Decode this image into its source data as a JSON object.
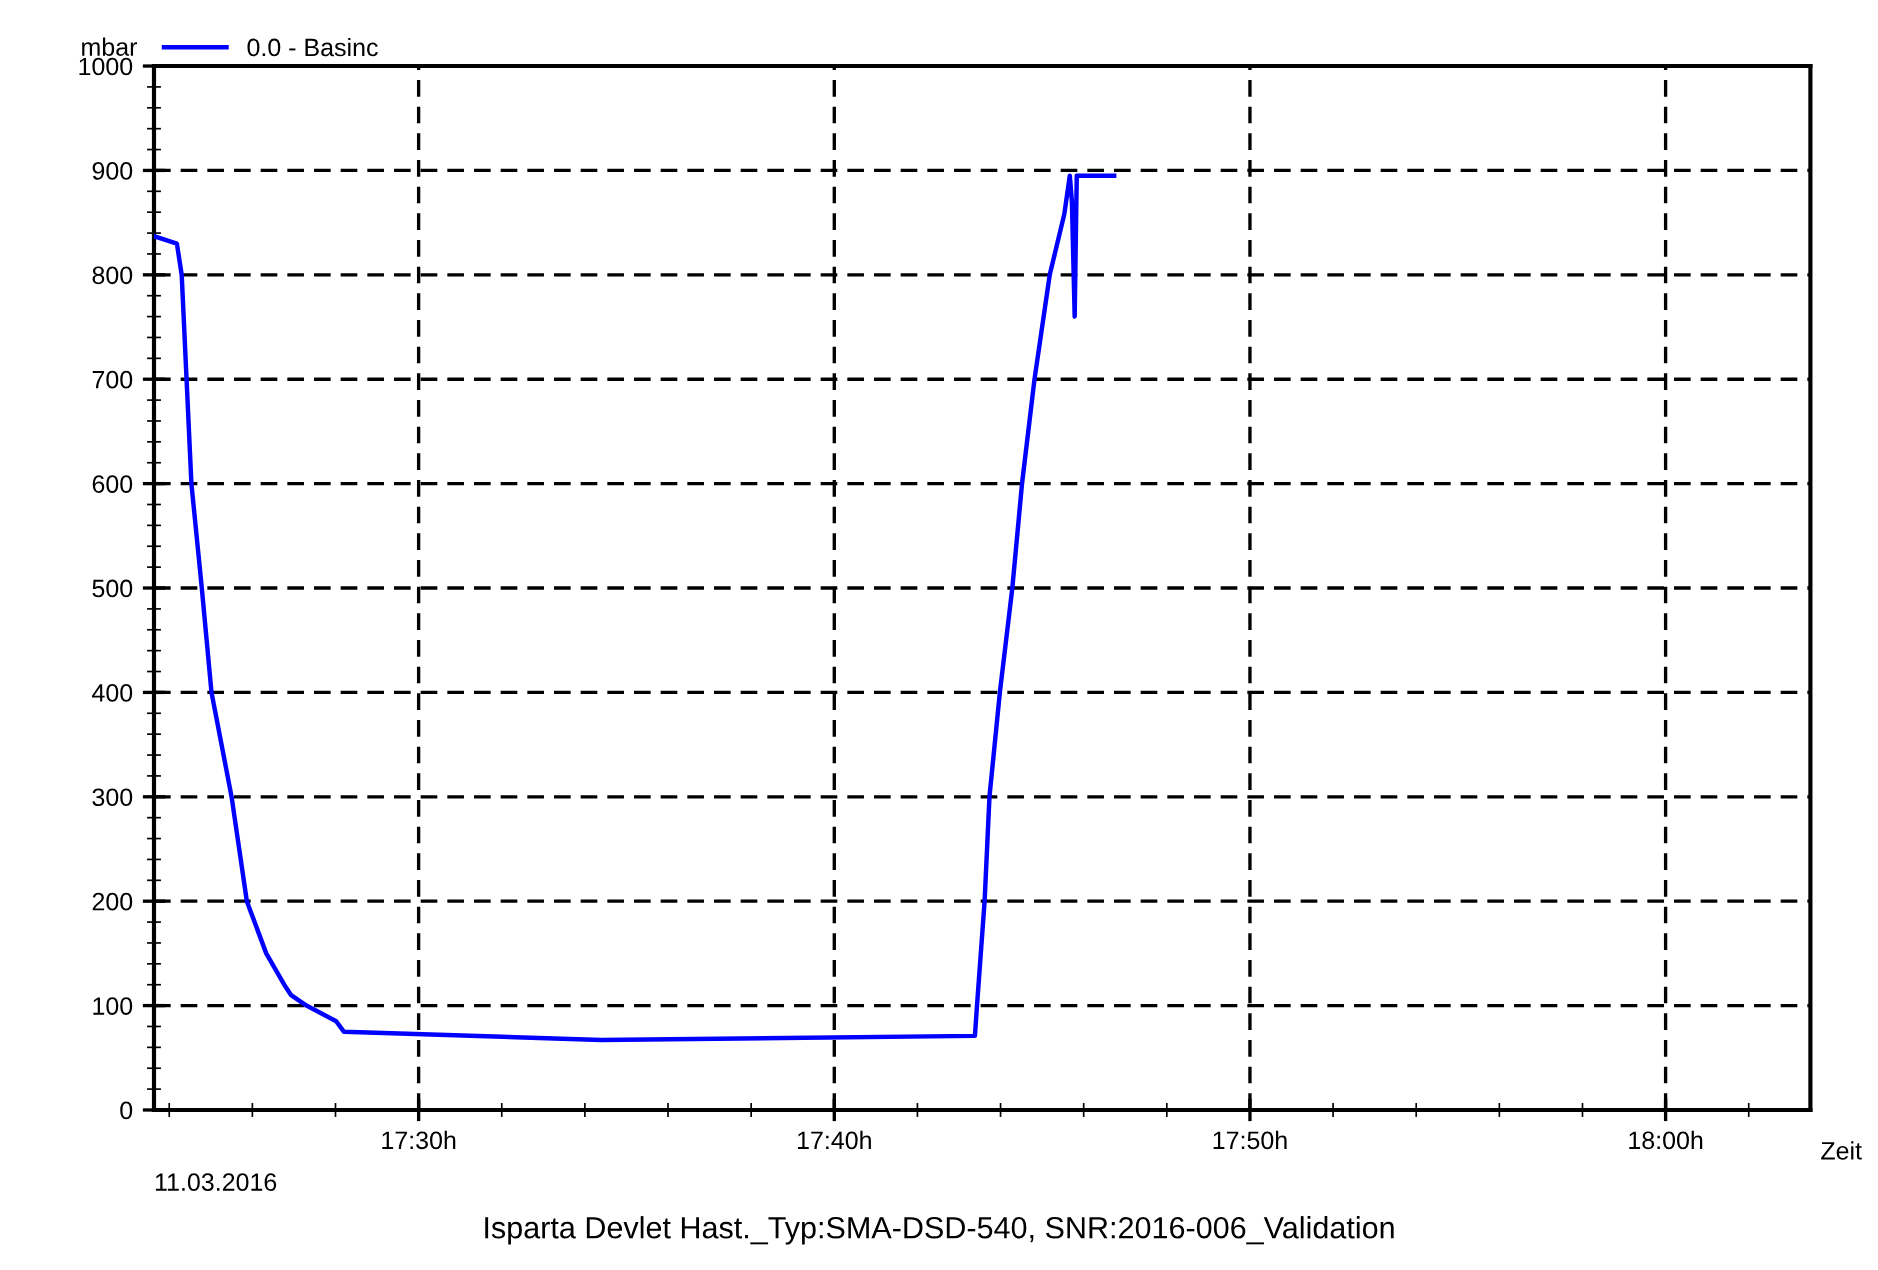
{
  "chart_data": {
    "type": "line",
    "xlabel": "Zeit",
    "ylabel": "mbar",
    "annotations": [
      "11.03.2016",
      "Isparta Devlet Hast._Typ:SMA-DSD-540, SNR:2016-006_Validation"
    ],
    "series": [
      {
        "name": "0.0 - Basinc",
        "color": "#0000ff",
        "x": [
          "2016-03-11T17:23:38",
          "2016-03-11T17:24:11",
          "2016-03-11T17:24:18",
          "2016-03-11T17:24:25",
          "2016-03-11T17:24:32",
          "2016-03-11T17:24:47",
          "2016-03-11T17:25:01",
          "2016-03-11T17:25:30",
          "2016-03-11T17:25:52",
          "2016-03-11T17:26:20",
          "2016-03-11T17:26:46",
          "2016-03-11T17:26:56",
          "2016-03-11T17:27:18",
          "2016-03-11T17:28:01",
          "2016-03-11T17:28:12",
          "2016-03-11T17:34:23",
          "2016-03-11T17:43:23",
          "2016-03-11T17:43:26",
          "2016-03-11T17:43:37",
          "2016-03-11T17:43:44",
          "2016-03-11T17:43:59",
          "2016-03-11T17:44:17",
          "2016-03-11T17:44:31",
          "2016-03-11T17:44:49",
          "2016-03-11T17:45:11",
          "2016-03-11T17:45:32",
          "2016-03-11T17:45:40",
          "2016-03-11T17:45:43",
          "2016-03-11T17:45:47",
          "2016-03-11T17:45:50",
          "2016-03-11T17:46:44"
        ],
        "values": [
          837,
          830,
          800,
          700,
          600,
          500,
          400,
          300,
          200,
          150,
          120,
          110,
          100,
          85,
          75,
          67,
          71,
          100,
          200,
          300,
          400,
          500,
          600,
          700,
          800,
          858,
          895,
          870,
          760,
          895,
          895
        ]
      }
    ],
    "xlim": [
      "2016-03-11T17:23:38",
      "2016-03-11T18:03:29"
    ],
    "ylim": [
      0,
      1000
    ],
    "xticks": [
      {
        "value": "2016-03-11T17:30",
        "label": "17:30h"
      },
      {
        "value": "2016-03-11T17:40",
        "label": "17:40h"
      },
      {
        "value": "2016-03-11T17:50",
        "label": "17:50h"
      },
      {
        "value": "2016-03-11T18:00",
        "label": "18:00h"
      }
    ],
    "yticks": [
      0,
      100,
      200,
      300,
      400,
      500,
      600,
      700,
      800,
      900,
      1000
    ],
    "grid": true,
    "legend": "top left",
    "line_style": "solid",
    "marker": "none"
  }
}
